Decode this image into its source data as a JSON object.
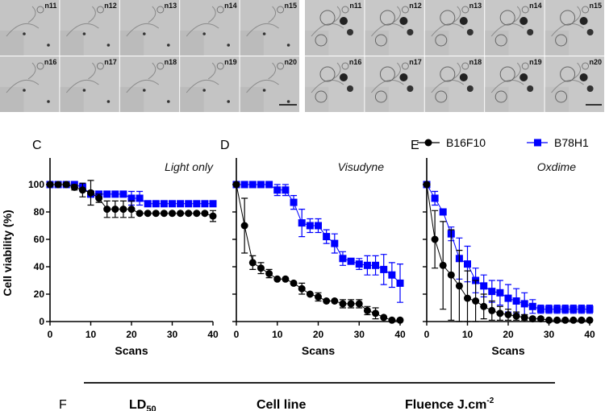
{
  "micrographs": {
    "left_labels": [
      "n11",
      "n12",
      "n13",
      "n14",
      "n15",
      "n16",
      "n17",
      "n18",
      "n19",
      "n20"
    ],
    "right_labels": [
      "n11",
      "n12",
      "n13",
      "n14",
      "n15",
      "n16",
      "n17",
      "n18",
      "n19",
      "n20"
    ]
  },
  "chart_data": [
    {
      "panel": "C",
      "type": "line",
      "title": "Light only",
      "xlabel": "Scans",
      "ylabel": "Cell viability (%)",
      "xlim": [
        0,
        40
      ],
      "ylim": [
        0,
        100
      ],
      "xticks": [
        "0",
        "10",
        "20",
        "30",
        "40"
      ],
      "yticks": [
        "0",
        "20",
        "40",
        "60",
        "80",
        "100"
      ],
      "x": [
        0,
        2,
        4,
        6,
        8,
        10,
        12,
        14,
        16,
        18,
        20,
        22,
        24,
        26,
        28,
        30,
        32,
        34,
        36,
        38,
        40
      ],
      "series": [
        {
          "name": "B16F10",
          "color": "#000000",
          "marker": "circle",
          "values": [
            100,
            100,
            100,
            98,
            96,
            94,
            90,
            82,
            82,
            82,
            82,
            79,
            79,
            79,
            79,
            79,
            79,
            79,
            79,
            79,
            77
          ],
          "err": [
            0,
            0,
            0,
            2,
            5,
            9,
            3,
            6,
            6,
            6,
            6,
            0,
            0,
            0,
            0,
            0,
            0,
            0,
            0,
            0,
            4
          ]
        },
        {
          "name": "B78H1",
          "color": "#0000ff",
          "marker": "square",
          "values": [
            100,
            100,
            100,
            100,
            98,
            93,
            93,
            93,
            93,
            93,
            90,
            90,
            86,
            86,
            86,
            86,
            86,
            86,
            86,
            86,
            86
          ],
          "err": [
            0,
            0,
            0,
            0,
            3,
            2,
            2,
            2,
            2,
            2,
            5,
            5,
            0,
            0,
            0,
            0,
            0,
            0,
            0,
            0,
            0
          ]
        }
      ]
    },
    {
      "panel": "D",
      "type": "line",
      "title": "Visudyne",
      "xlabel": "Scans",
      "xlim": [
        0,
        40
      ],
      "ylim": [
        0,
        100
      ],
      "xticks": [
        "0",
        "10",
        "20",
        "30",
        "40"
      ],
      "x": [
        0,
        2,
        4,
        6,
        8,
        10,
        12,
        14,
        16,
        18,
        20,
        22,
        24,
        26,
        28,
        30,
        32,
        34,
        36,
        38,
        40
      ],
      "series": [
        {
          "name": "B16F10",
          "color": "#000000",
          "marker": "circle",
          "values": [
            100,
            70,
            43,
            39,
            35,
            31,
            31,
            28,
            24,
            20,
            18,
            15,
            15,
            13,
            13,
            13,
            8,
            6,
            3,
            1,
            1
          ],
          "err": [
            0,
            20,
            5,
            4,
            3,
            0,
            0,
            0,
            4,
            0,
            3,
            0,
            0,
            3,
            3,
            3,
            3,
            4,
            0,
            0,
            0
          ]
        },
        {
          "name": "B78H1",
          "color": "#0000ff",
          "marker": "square",
          "values": [
            100,
            100,
            100,
            100,
            100,
            96,
            96,
            87,
            72,
            70,
            70,
            62,
            57,
            46,
            44,
            42,
            41,
            41,
            38,
            34,
            28
          ],
          "err": [
            0,
            0,
            0,
            0,
            0,
            4,
            4,
            5,
            10,
            5,
            5,
            5,
            7,
            5,
            2,
            4,
            7,
            7,
            11,
            9,
            14
          ]
        }
      ]
    },
    {
      "panel": "E",
      "type": "line",
      "title": "Oxdime",
      "xlabel": "Scans",
      "xlim": [
        0,
        40
      ],
      "ylim": [
        0,
        100
      ],
      "xticks": [
        "0",
        "10",
        "20",
        "30",
        "40"
      ],
      "x": [
        0,
        2,
        4,
        6,
        8,
        10,
        12,
        14,
        16,
        18,
        20,
        22,
        24,
        26,
        28,
        30,
        32,
        34,
        36,
        38,
        40
      ],
      "legend": {
        "placement": "top",
        "entries": [
          "B16F10",
          "B78H1"
        ]
      },
      "series": [
        {
          "name": "B16F10",
          "color": "#000000",
          "marker": "circle",
          "values": [
            100,
            60,
            41,
            34,
            26,
            17,
            15,
            11,
            8,
            6,
            5,
            4,
            3,
            2,
            2,
            1,
            1,
            1,
            1,
            1,
            1
          ],
          "err": [
            0,
            21,
            32,
            33,
            26,
            20,
            15,
            9,
            7,
            5,
            4,
            3,
            2,
            1,
            1,
            1,
            1,
            1,
            1,
            1,
            1
          ]
        },
        {
          "name": "B78H1",
          "color": "#0000ff",
          "marker": "square",
          "values": [
            100,
            90,
            80,
            64,
            46,
            42,
            30,
            26,
            22,
            21,
            17,
            15,
            13,
            11,
            9,
            9,
            9,
            9,
            9,
            9,
            9
          ],
          "err": [
            0,
            5,
            0,
            5,
            15,
            13,
            9,
            8,
            8,
            9,
            10,
            9,
            8,
            5,
            3,
            3,
            3,
            3,
            3,
            3,
            3
          ]
        }
      ]
    }
  ],
  "table_F": {
    "panel": "F",
    "headers": [
      "LD",
      "Cell line",
      "Fluence J.cm"
    ],
    "ld_sub": "50",
    "fluence_sup": "-2"
  }
}
